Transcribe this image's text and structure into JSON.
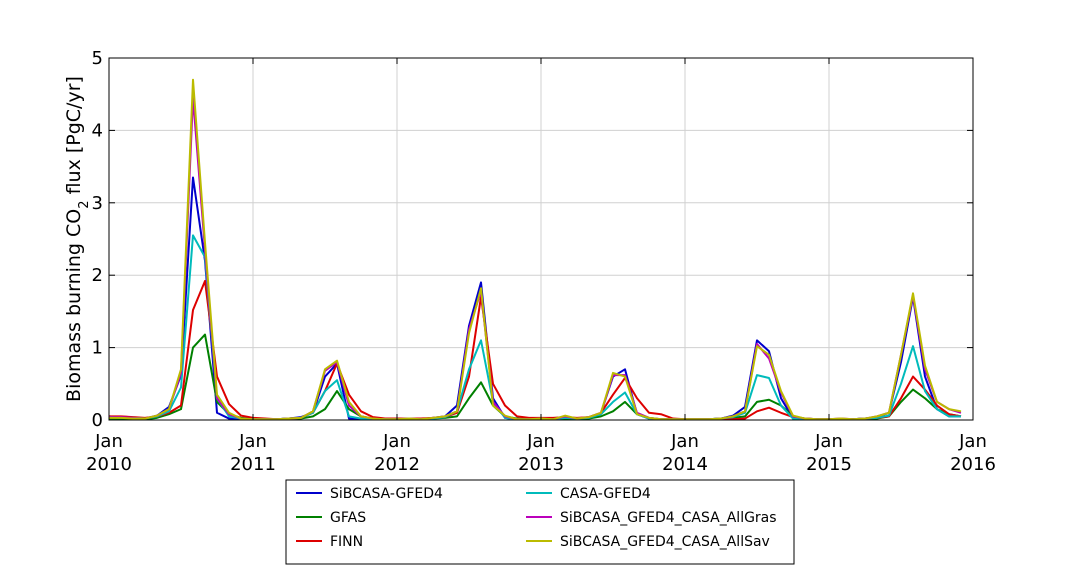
{
  "chart_data": {
    "type": "line",
    "title": "",
    "ylabel_parts": {
      "before": "Biomass burning CO",
      "sub": "2",
      "after": " flux [PgC/yr]"
    },
    "xlabel": "",
    "ylim": [
      0,
      5
    ],
    "yticks": [
      "0",
      "1",
      "2",
      "3",
      "4",
      "5"
    ],
    "x_range_months": [
      0,
      72
    ],
    "xticks": [
      {
        "month": "Jan",
        "year": "2010"
      },
      {
        "month": "Jan",
        "year": "2011"
      },
      {
        "month": "Jan",
        "year": "2012"
      },
      {
        "month": "Jan",
        "year": "2013"
      },
      {
        "month": "Jan",
        "year": "2014"
      },
      {
        "month": "Jan",
        "year": "2015"
      },
      {
        "month": "Jan",
        "year": "2016"
      }
    ],
    "grid": true,
    "legend_position": "bottom-center",
    "x_start": "2010-01",
    "x_end": "2015-12",
    "series": [
      {
        "name": "SiBCASA-GFED4",
        "color": "#0000cc",
        "values": [
          0.05,
          0.04,
          0.03,
          0.02,
          0.06,
          0.18,
          0.62,
          3.35,
          2.2,
          0.1,
          0.02,
          0.01,
          0.01,
          0.01,
          0.01,
          0.02,
          0.04,
          0.1,
          0.6,
          0.78,
          0.02,
          0.01,
          0.01,
          0.01,
          0.01,
          0.02,
          0.01,
          0.03,
          0.05,
          0.2,
          1.3,
          1.9,
          0.3,
          0.03,
          0.01,
          0.01,
          0.02,
          0.01,
          0.04,
          0.02,
          0.03,
          0.1,
          0.6,
          0.7,
          0.08,
          0.02,
          0.01,
          0.01,
          0.01,
          0.01,
          0.01,
          0.02,
          0.06,
          0.18,
          1.1,
          0.95,
          0.3,
          0.02,
          0.01,
          0.01,
          0.01,
          0.01,
          0.01,
          0.02,
          0.04,
          0.1,
          0.8,
          1.7,
          0.6,
          0.15,
          0.05,
          0.05
        ]
      },
      {
        "name": "GFAS",
        "color": "#008000",
        "values": [
          0.02,
          0.02,
          0.02,
          0.01,
          0.03,
          0.08,
          0.15,
          1.0,
          1.18,
          0.25,
          0.08,
          0.03,
          0.02,
          0.01,
          0.01,
          0.02,
          0.02,
          0.05,
          0.15,
          0.4,
          0.15,
          0.05,
          0.02,
          0.01,
          0.01,
          0.01,
          0.01,
          0.02,
          0.03,
          0.05,
          0.3,
          0.52,
          0.2,
          0.05,
          0.02,
          0.01,
          0.01,
          0.01,
          0.01,
          0.02,
          0.02,
          0.05,
          0.12,
          0.25,
          0.08,
          0.03,
          0.01,
          0.01,
          0.01,
          0.01,
          0.01,
          0.02,
          0.03,
          0.05,
          0.25,
          0.28,
          0.2,
          0.05,
          0.02,
          0.01,
          0.01,
          0.01,
          0.01,
          0.02,
          0.02,
          0.05,
          0.25,
          0.42,
          0.3,
          0.15,
          0.08,
          0.05
        ]
      },
      {
        "name": "FINN",
        "color": "#dd0000",
        "values": [
          0.05,
          0.05,
          0.04,
          0.03,
          0.05,
          0.1,
          0.2,
          1.52,
          1.92,
          0.6,
          0.22,
          0.06,
          0.03,
          0.02,
          0.01,
          0.02,
          0.03,
          0.1,
          0.4,
          0.78,
          0.35,
          0.12,
          0.04,
          0.02,
          0.02,
          0.02,
          0.02,
          0.03,
          0.04,
          0.1,
          0.6,
          1.7,
          0.5,
          0.2,
          0.05,
          0.03,
          0.03,
          0.03,
          0.04,
          0.03,
          0.04,
          0.1,
          0.35,
          0.58,
          0.3,
          0.1,
          0.08,
          0.02,
          0.01,
          0.01,
          0.01,
          0.01,
          0.01,
          0.02,
          0.12,
          0.17,
          0.1,
          0.04,
          0.02,
          0.01,
          0.01,
          0.01,
          0.01,
          0.02,
          0.03,
          0.05,
          0.3,
          0.6,
          0.42,
          0.2,
          0.08,
          0.05
        ]
      },
      {
        "name": "CASA-GFED4",
        "color": "#00bbbb",
        "values": [
          0.04,
          0.03,
          0.03,
          0.02,
          0.05,
          0.12,
          0.45,
          2.55,
          2.25,
          0.3,
          0.05,
          0.02,
          0.01,
          0.01,
          0.01,
          0.02,
          0.03,
          0.1,
          0.4,
          0.55,
          0.05,
          0.02,
          0.01,
          0.01,
          0.01,
          0.01,
          0.01,
          0.02,
          0.04,
          0.12,
          0.7,
          1.1,
          0.25,
          0.03,
          0.01,
          0.01,
          0.01,
          0.01,
          0.03,
          0.02,
          0.03,
          0.08,
          0.25,
          0.38,
          0.08,
          0.02,
          0.01,
          0.01,
          0.01,
          0.01,
          0.01,
          0.02,
          0.04,
          0.1,
          0.62,
          0.58,
          0.2,
          0.02,
          0.01,
          0.01,
          0.01,
          0.01,
          0.01,
          0.02,
          0.03,
          0.06,
          0.5,
          1.02,
          0.4,
          0.15,
          0.05,
          0.05
        ]
      },
      {
        "name": "SiBCASA_GFED4_CASA_AllGras",
        "color": "#bb00bb",
        "values": [
          0.04,
          0.04,
          0.03,
          0.02,
          0.06,
          0.15,
          0.65,
          4.45,
          2.35,
          0.3,
          0.08,
          0.02,
          0.01,
          0.01,
          0.01,
          0.02,
          0.03,
          0.12,
          0.68,
          0.8,
          0.2,
          0.05,
          0.02,
          0.01,
          0.01,
          0.02,
          0.01,
          0.03,
          0.05,
          0.12,
          1.25,
          1.78,
          0.25,
          0.05,
          0.01,
          0.01,
          0.02,
          0.01,
          0.05,
          0.02,
          0.04,
          0.1,
          0.62,
          0.62,
          0.1,
          0.03,
          0.01,
          0.01,
          0.01,
          0.01,
          0.01,
          0.02,
          0.05,
          0.12,
          1.05,
          0.85,
          0.38,
          0.05,
          0.02,
          0.01,
          0.01,
          0.02,
          0.01,
          0.02,
          0.05,
          0.1,
          0.9,
          1.72,
          0.7,
          0.25,
          0.15,
          0.1
        ]
      },
      {
        "name": "SiBCASA_GFED4_CASA_AllSav",
        "color": "#bbbb00",
        "values": [
          0.03,
          0.03,
          0.02,
          0.02,
          0.06,
          0.15,
          0.7,
          4.7,
          2.45,
          0.35,
          0.1,
          0.02,
          0.01,
          0.01,
          0.01,
          0.02,
          0.03,
          0.12,
          0.7,
          0.82,
          0.25,
          0.05,
          0.02,
          0.01,
          0.01,
          0.02,
          0.01,
          0.03,
          0.05,
          0.12,
          1.2,
          1.82,
          0.2,
          0.06,
          0.01,
          0.01,
          0.02,
          0.01,
          0.06,
          0.02,
          0.04,
          0.1,
          0.65,
          0.6,
          0.08,
          0.03,
          0.01,
          0.01,
          0.01,
          0.01,
          0.01,
          0.02,
          0.05,
          0.12,
          1.02,
          0.9,
          0.4,
          0.06,
          0.02,
          0.01,
          0.01,
          0.02,
          0.01,
          0.02,
          0.05,
          0.1,
          0.9,
          1.75,
          0.75,
          0.25,
          0.15,
          0.12
        ]
      }
    ]
  }
}
